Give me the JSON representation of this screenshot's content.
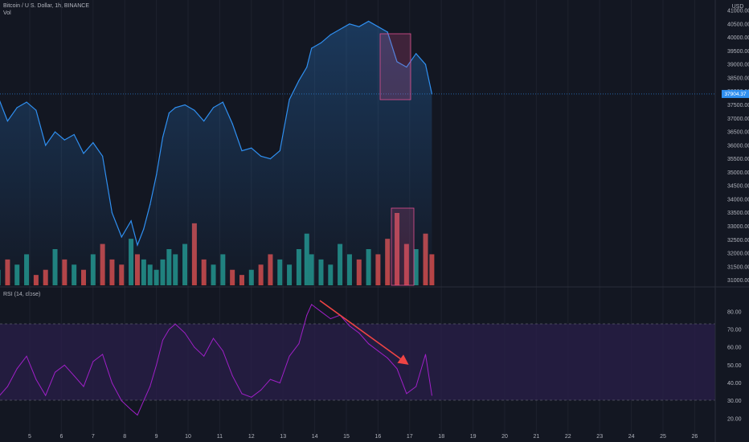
{
  "header": {
    "symbol": "Bitcoin / U.S. Dollar, 1h, BINANCE",
    "volume_label": "Vol",
    "currency": "USD"
  },
  "rsi_panel": {
    "label": "RSI (14, close)"
  },
  "price_badge": "37904.37",
  "colors": {
    "background": "#131722",
    "price_line": "#2f8ff0",
    "rsi_line": "#a020c8",
    "rsi_band": "#2a1f4a",
    "vol_up": "#26a69a",
    "vol_down": "#ef5350",
    "highlight": "#e05090",
    "arrow": "#ef4444"
  },
  "chart_data": [
    {
      "type": "area",
      "title": "",
      "xlabel": "",
      "ylabel": "",
      "ylim": [
        30900,
        41150
      ],
      "x_ticks": [
        "5",
        "6",
        "7",
        "8",
        "9",
        "10",
        "11",
        "12",
        "13",
        "14",
        "15",
        "16",
        "17",
        "18",
        "19",
        "20",
        "21",
        "22",
        "23",
        "24",
        "25",
        "26"
      ],
      "y_ticks": [
        31000,
        31500,
        32000,
        32500,
        33000,
        33500,
        34000,
        34500,
        35000,
        35500,
        36000,
        36500,
        37000,
        37500,
        38000,
        38500,
        39000,
        39500,
        40000,
        40500,
        41000
      ],
      "last_price": 37904.37,
      "x": [
        4.0,
        4.3,
        4.6,
        4.9,
        5.2,
        5.5,
        5.8,
        6.1,
        6.4,
        6.7,
        7.0,
        7.3,
        7.6,
        7.9,
        8.2,
        8.4,
        8.6,
        8.8,
        9.0,
        9.2,
        9.4,
        9.6,
        9.9,
        10.2,
        10.5,
        10.8,
        11.1,
        11.4,
        11.7,
        12.0,
        12.3,
        12.6,
        12.9,
        13.2,
        13.5,
        13.75,
        13.9,
        14.2,
        14.5,
        14.8,
        15.1,
        15.4,
        15.7,
        16.0,
        16.3,
        16.6,
        16.9,
        17.2,
        17.5,
        17.7
      ],
      "values": [
        37800,
        36900,
        37400,
        37600,
        37300,
        36000,
        36500,
        36200,
        36400,
        35700,
        36100,
        35600,
        33500,
        32600,
        33200,
        32300,
        32900,
        33800,
        34900,
        36300,
        37200,
        37400,
        37500,
        37300,
        36900,
        37400,
        37600,
        36800,
        35800,
        35900,
        35600,
        35500,
        35800,
        37700,
        38400,
        38900,
        39600,
        39800,
        40100,
        40300,
        40500,
        40400,
        40600,
        40400,
        40200,
        39100,
        38900,
        39400,
        39000,
        37904.37
      ]
    },
    {
      "type": "bar",
      "title": "",
      "xlabel": "",
      "ylabel": "",
      "series": [
        {
          "name": "",
          "values": [
            3,
            5,
            4,
            6,
            2,
            3,
            7,
            5,
            4,
            3,
            6,
            8,
            5,
            4,
            9,
            6,
            5,
            4,
            3,
            5,
            7,
            6,
            8,
            12,
            5,
            4,
            6,
            3,
            2,
            3,
            4,
            6,
            5,
            4,
            7,
            10,
            6,
            5,
            4,
            8,
            6,
            5,
            7,
            6,
            9,
            14,
            8,
            7,
            10,
            6
          ]
        }
      ]
    },
    {
      "type": "line",
      "title": "",
      "xlabel": "",
      "ylabel": "",
      "ylim": [
        15,
        88
      ],
      "y_ticks": [
        20,
        30,
        40,
        50,
        60,
        70,
        80
      ],
      "overbought": 70,
      "oversold": 30,
      "x": [
        4.0,
        4.3,
        4.6,
        4.9,
        5.2,
        5.5,
        5.8,
        6.1,
        6.4,
        6.7,
        7.0,
        7.3,
        7.6,
        7.9,
        8.2,
        8.4,
        8.6,
        8.8,
        9.0,
        9.2,
        9.4,
        9.6,
        9.9,
        10.2,
        10.5,
        10.8,
        11.1,
        11.4,
        11.7,
        12.0,
        12.3,
        12.6,
        12.9,
        13.2,
        13.5,
        13.75,
        13.9,
        14.2,
        14.5,
        14.8,
        15.1,
        15.4,
        15.7,
        16.0,
        16.3,
        16.6,
        16.9,
        17.2,
        17.5,
        17.7
      ],
      "values": [
        32,
        38,
        48,
        55,
        42,
        33,
        46,
        50,
        44,
        38,
        52,
        56,
        40,
        30,
        25,
        22,
        30,
        38,
        50,
        64,
        70,
        73,
        68,
        60,
        55,
        65,
        58,
        44,
        34,
        32,
        36,
        42,
        40,
        55,
        62,
        78,
        84,
        80,
        76,
        78,
        72,
        68,
        62,
        58,
        54,
        48,
        34,
        38,
        56,
        33
      ]
    }
  ]
}
